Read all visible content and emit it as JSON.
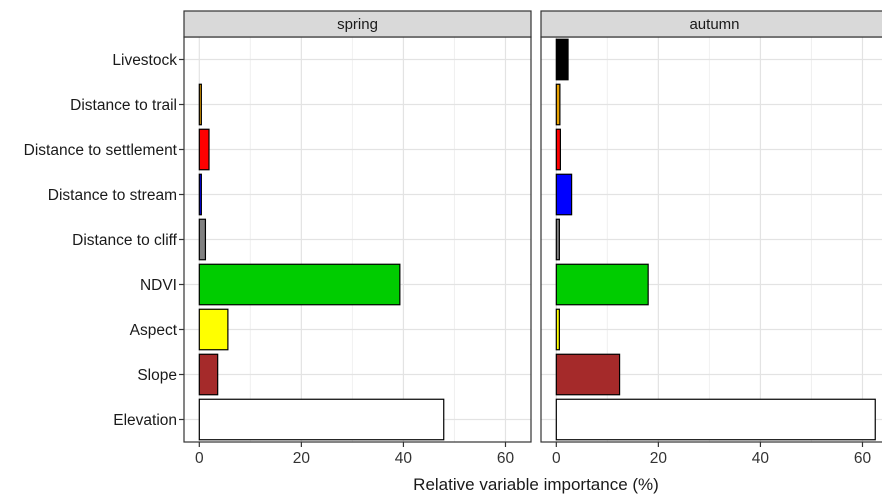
{
  "chart_data": {
    "type": "bar",
    "orientation": "horizontal",
    "xlabel": "Relative variable importance (%)",
    "ylabel": "",
    "xlim": [
      -3,
      65
    ],
    "xticks": [
      "0",
      "20",
      "40",
      "60"
    ],
    "grid": true,
    "categories": [
      "Livestock",
      "Distance to trail",
      "Distance to settlement",
      "Distance to stream",
      "Distance to cliff",
      "NDVI",
      "Aspect",
      "Slope",
      "Elevation"
    ],
    "colors": {
      "Livestock": "#000000",
      "Distance to trail": "#e69f00",
      "Distance to settlement": "#ff0000",
      "Distance to stream": "#0000ff",
      "Distance to cliff": "#808080",
      "NDVI": "#00cc00",
      "Aspect": "#ffff00",
      "Slope": "#a52a2a",
      "Elevation": "#ffffff"
    },
    "panels": [
      {
        "title": "spring",
        "values": [
          0,
          0.4,
          1.9,
          0.4,
          1.2,
          39.3,
          5.6,
          3.6,
          47.9
        ]
      },
      {
        "title": "autumn",
        "values": [
          2.3,
          0.7,
          0.8,
          3.0,
          0.6,
          18.0,
          0.6,
          12.4,
          62.5
        ]
      }
    ]
  }
}
